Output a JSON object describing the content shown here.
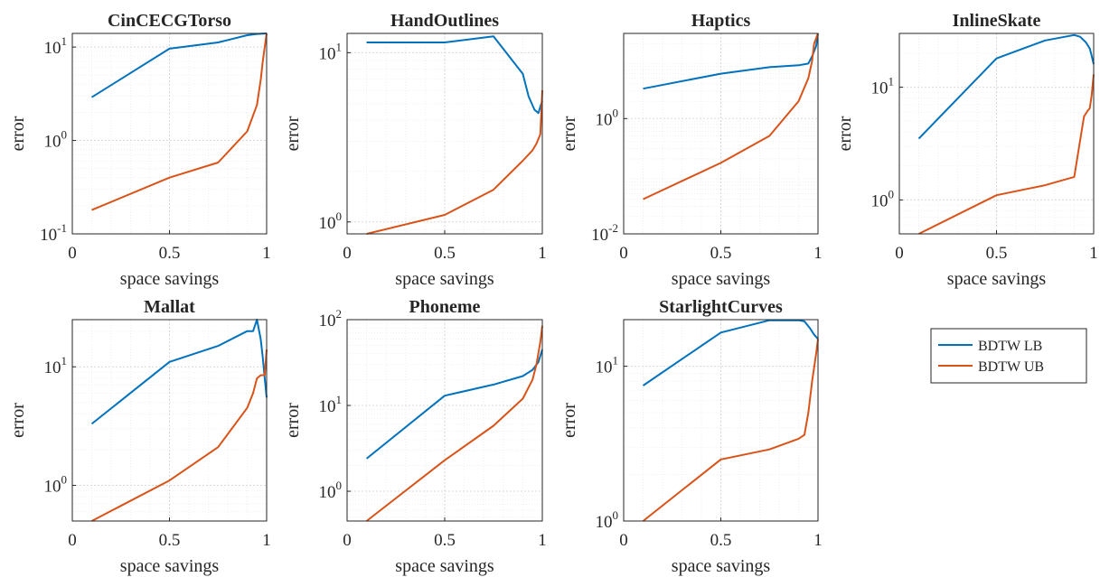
{
  "legend": {
    "entries": [
      {
        "label": "BDTW LB",
        "color": "#0072BD"
      },
      {
        "label": "BDTW UB",
        "color": "#D95319"
      }
    ]
  },
  "chart_data": [
    {
      "type": "line",
      "title": "CinCECGTorso",
      "xlabel": "space savings",
      "ylabel": "error",
      "yscale": "log",
      "xlim": [
        0,
        1
      ],
      "ylim": [
        0.1,
        14
      ],
      "xticks": [
        {
          "v": 0,
          "t": "0"
        },
        {
          "v": 0.5,
          "t": "0.5"
        },
        {
          "v": 1,
          "t": "1"
        }
      ],
      "yticks": [
        {
          "v": 0.1,
          "b": "10",
          "e": "-1"
        },
        {
          "v": 1,
          "b": "10",
          "e": "0"
        },
        {
          "v": 10,
          "b": "10",
          "e": "1"
        }
      ],
      "series": [
        {
          "name": "BDTW LB",
          "color": "#0072BD",
          "x": [
            0.1,
            0.5,
            0.75,
            0.9,
            0.95,
            1.0
          ],
          "y": [
            2.9,
            9.6,
            11.2,
            13.4,
            13.8,
            14.0
          ]
        },
        {
          "name": "BDTW UB",
          "color": "#D95319",
          "x": [
            0.1,
            0.5,
            0.75,
            0.9,
            0.95,
            0.97,
            0.98,
            0.99,
            1.0
          ],
          "y": [
            0.18,
            0.4,
            0.58,
            1.25,
            2.4,
            4.5,
            7.0,
            10.0,
            14.0
          ]
        }
      ]
    },
    {
      "type": "line",
      "title": "HandOutlines",
      "xlabel": "space savings",
      "ylabel": "error",
      "yscale": "log",
      "xlim": [
        0,
        1
      ],
      "ylim": [
        0.85,
        13
      ],
      "xticks": [
        {
          "v": 0,
          "t": "0"
        },
        {
          "v": 0.5,
          "t": "0.5"
        },
        {
          "v": 1,
          "t": "1"
        }
      ],
      "yticks": [
        {
          "v": 1,
          "b": "10",
          "e": "0"
        },
        {
          "v": 10,
          "b": "10",
          "e": "1"
        }
      ],
      "series": [
        {
          "name": "BDTW LB",
          "color": "#0072BD",
          "x": [
            0.1,
            0.5,
            0.75,
            0.9,
            0.93,
            0.96,
            0.98,
            0.99,
            1.0
          ],
          "y": [
            11.5,
            11.5,
            12.5,
            7.5,
            5.5,
            4.6,
            4.4,
            4.8,
            5.2
          ]
        },
        {
          "name": "BDTW UB",
          "color": "#D95319",
          "x": [
            0.1,
            0.5,
            0.75,
            0.9,
            0.95,
            0.97,
            0.99,
            1.0
          ],
          "y": [
            0.85,
            1.1,
            1.55,
            2.3,
            2.65,
            2.9,
            3.3,
            6.0
          ]
        }
      ]
    },
    {
      "type": "line",
      "title": "Haptics",
      "xlabel": "space savings",
      "ylabel": "error",
      "yscale": "log",
      "xlim": [
        0,
        1
      ],
      "ylim": [
        0.01,
        30
      ],
      "xticks": [
        {
          "v": 0,
          "t": "0"
        },
        {
          "v": 0.5,
          "t": "0.5"
        },
        {
          "v": 1,
          "t": "1"
        }
      ],
      "yticks": [
        {
          "v": 0.01,
          "b": "10",
          "e": "-2"
        },
        {
          "v": 1,
          "b": "10",
          "e": "0"
        }
      ],
      "series": [
        {
          "name": "BDTW LB",
          "color": "#0072BD",
          "x": [
            0.1,
            0.5,
            0.75,
            0.9,
            0.95,
            0.97,
            0.99,
            1.0
          ],
          "y": [
            3.3,
            6.0,
            7.8,
            8.4,
            9.0,
            12.0,
            18.0,
            30.0
          ]
        },
        {
          "name": "BDTW UB",
          "color": "#D95319",
          "x": [
            0.1,
            0.5,
            0.75,
            0.9,
            0.95,
            0.97,
            0.98,
            1.0
          ],
          "y": [
            0.04,
            0.17,
            0.5,
            2.0,
            5.0,
            10.0,
            20.0,
            30.0
          ]
        }
      ]
    },
    {
      "type": "line",
      "title": "InlineSkate",
      "xlabel": "space savings",
      "ylabel": "error",
      "yscale": "log",
      "xlim": [
        0,
        1
      ],
      "ylim": [
        0.5,
        30
      ],
      "xticks": [
        {
          "v": 0,
          "t": "0"
        },
        {
          "v": 0.5,
          "t": "0.5"
        },
        {
          "v": 1,
          "t": "1"
        }
      ],
      "yticks": [
        {
          "v": 1,
          "b": "10",
          "e": "0"
        },
        {
          "v": 10,
          "b": "10",
          "e": "1"
        }
      ],
      "series": [
        {
          "name": "BDTW LB",
          "color": "#0072BD",
          "x": [
            0.1,
            0.5,
            0.75,
            0.9,
            0.93,
            0.96,
            0.98,
            0.99,
            1.0
          ],
          "y": [
            3.5,
            18.0,
            26.0,
            29.0,
            28.0,
            25.0,
            22.0,
            19.0,
            16.0
          ]
        },
        {
          "name": "BDTW UB",
          "color": "#D95319",
          "x": [
            0.1,
            0.5,
            0.75,
            0.9,
            0.95,
            0.97,
            0.98,
            0.99,
            1.0
          ],
          "y": [
            0.5,
            1.1,
            1.35,
            1.6,
            5.5,
            6.2,
            6.5,
            8.5,
            13.0
          ]
        }
      ]
    },
    {
      "type": "line",
      "title": "Mallat",
      "xlabel": "space savings",
      "ylabel": "error",
      "yscale": "log",
      "xlim": [
        0,
        1
      ],
      "ylim": [
        0.5,
        25
      ],
      "xticks": [
        {
          "v": 0,
          "t": "0"
        },
        {
          "v": 0.5,
          "t": "0.5"
        },
        {
          "v": 1,
          "t": "1"
        }
      ],
      "yticks": [
        {
          "v": 1,
          "b": "10",
          "e": "0"
        },
        {
          "v": 10,
          "b": "10",
          "e": "1"
        }
      ],
      "series": [
        {
          "name": "BDTW LB",
          "color": "#0072BD",
          "x": [
            0.1,
            0.5,
            0.75,
            0.9,
            0.93,
            0.95,
            0.97,
            0.98,
            0.99,
            1.0
          ],
          "y": [
            3.3,
            11.0,
            15.0,
            20.0,
            20.0,
            25.0,
            17.0,
            12.0,
            8.0,
            5.5
          ]
        },
        {
          "name": "BDTW UB",
          "color": "#D95319",
          "x": [
            0.1,
            0.5,
            0.75,
            0.9,
            0.93,
            0.95,
            0.97,
            0.99,
            1.0
          ],
          "y": [
            0.5,
            1.1,
            2.1,
            4.5,
            6.0,
            8.0,
            8.5,
            8.5,
            14.0
          ]
        }
      ]
    },
    {
      "type": "line",
      "title": "Phoneme",
      "xlabel": "space savings",
      "ylabel": "error",
      "yscale": "log",
      "xlim": [
        0,
        1
      ],
      "ylim": [
        0.45,
        100
      ],
      "xticks": [
        {
          "v": 0,
          "t": "0"
        },
        {
          "v": 0.5,
          "t": "0.5"
        },
        {
          "v": 1,
          "t": "1"
        }
      ],
      "yticks": [
        {
          "v": 1,
          "b": "10",
          "e": "0"
        },
        {
          "v": 10,
          "b": "10",
          "e": "1"
        },
        {
          "v": 100,
          "b": "10",
          "e": "2"
        }
      ],
      "series": [
        {
          "name": "BDTW LB",
          "color": "#0072BD",
          "x": [
            0.1,
            0.5,
            0.75,
            0.9,
            0.95,
            0.98,
            1.0
          ],
          "y": [
            2.4,
            13.0,
            17.5,
            22.0,
            26.0,
            32.0,
            45.0
          ]
        },
        {
          "name": "BDTW UB",
          "color": "#D95319",
          "x": [
            0.1,
            0.5,
            0.75,
            0.9,
            0.95,
            0.97,
            0.99,
            1.0
          ],
          "y": [
            0.45,
            2.3,
            5.8,
            12.0,
            20.0,
            30.0,
            55.0,
            85.0
          ]
        }
      ]
    },
    {
      "type": "line",
      "title": "StarlightCurves",
      "xlabel": "space savings",
      "ylabel": "error",
      "yscale": "log",
      "xlim": [
        0,
        1
      ],
      "ylim": [
        1,
        20
      ],
      "xticks": [
        {
          "v": 0,
          "t": "0"
        },
        {
          "v": 0.5,
          "t": "0.5"
        },
        {
          "v": 1,
          "t": "1"
        }
      ],
      "yticks": [
        {
          "v": 1,
          "b": "10",
          "e": "0"
        },
        {
          "v": 10,
          "b": "10",
          "e": "1"
        }
      ],
      "series": [
        {
          "name": "BDTW LB",
          "color": "#0072BD",
          "x": [
            0.1,
            0.5,
            0.75,
            0.9,
            0.93,
            0.96,
            0.98,
            1.0
          ],
          "y": [
            7.5,
            16.5,
            19.8,
            19.8,
            19.5,
            17.5,
            16.0,
            15.0
          ]
        },
        {
          "name": "BDTW UB",
          "color": "#D95319",
          "x": [
            0.1,
            0.5,
            0.75,
            0.9,
            0.93,
            0.95,
            0.97,
            0.99,
            1.0
          ],
          "y": [
            1.0,
            2.5,
            2.9,
            3.4,
            3.6,
            5.0,
            8.0,
            12.0,
            15.0
          ]
        }
      ]
    }
  ]
}
